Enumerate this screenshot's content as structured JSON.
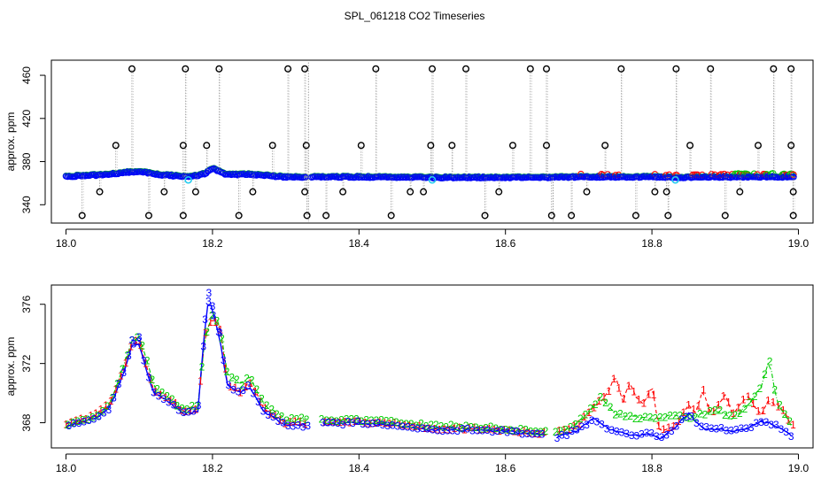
{
  "title": "SPL_061218  CO2 Timeseries",
  "chart_data": [
    {
      "type": "scatter",
      "panel": "top",
      "title": "SPL_061218  CO2 Timeseries",
      "xlabel": "",
      "ylabel": "approx. ppm",
      "xlim": [
        17.98,
        19.02
      ],
      "ylim": [
        323,
        474
      ],
      "xticks": [
        18.0,
        18.2,
        18.4,
        18.6,
        18.8,
        19.0
      ],
      "xtick_labels": [
        "18.0",
        "18.2",
        "18.4",
        "18.6",
        "18.8",
        "19.0"
      ],
      "yticks": [
        340,
        380,
        420,
        460
      ],
      "ytick_labels": [
        "340",
        "380",
        "420",
        "460"
      ],
      "baseline": [
        [
          18.0,
          366.5
        ],
        [
          18.05,
          368
        ],
        [
          18.08,
          370
        ],
        [
          18.1,
          371
        ],
        [
          18.13,
          368
        ],
        [
          18.17,
          366
        ],
        [
          18.19,
          369
        ],
        [
          18.2,
          374
        ],
        [
          18.22,
          368
        ],
        [
          18.25,
          368.5
        ],
        [
          18.3,
          366
        ],
        [
          18.4,
          366
        ],
        [
          18.5,
          365.5
        ],
        [
          18.6,
          365.5
        ],
        [
          18.65,
          365.5
        ],
        [
          18.7,
          366
        ],
        [
          18.8,
          366
        ],
        [
          18.83,
          365.5
        ],
        [
          18.9,
          366
        ],
        [
          18.99,
          366
        ]
      ],
      "high_spikes_x": [
        18.09,
        18.163,
        18.209,
        18.303,
        18.326,
        18.423,
        18.5,
        18.546,
        18.634,
        18.656,
        18.758,
        18.833,
        18.88,
        18.966,
        18.99
      ],
      "high_spike_value": 466,
      "low_spikes_x": [
        18.022,
        18.113,
        18.16,
        18.236,
        18.329,
        18.355,
        18.444,
        18.572,
        18.663,
        18.69,
        18.778,
        18.822,
        18.9,
        18.993
      ],
      "low_spike_value": 330,
      "mid_high_outliers": [
        [
          18.068,
          395
        ],
        [
          18.16,
          395
        ],
        [
          18.192,
          395
        ],
        [
          18.282,
          395
        ],
        [
          18.328,
          395
        ],
        [
          18.403,
          395
        ],
        [
          18.498,
          395
        ],
        [
          18.527,
          395
        ],
        [
          18.61,
          395
        ],
        [
          18.656,
          395
        ],
        [
          18.736,
          395
        ],
        [
          18.852,
          395
        ],
        [
          18.945,
          395
        ],
        [
          18.99,
          395
        ]
      ],
      "mid_low_outliers": [
        [
          18.046,
          352
        ],
        [
          18.134,
          352
        ],
        [
          18.177,
          352
        ],
        [
          18.255,
          352
        ],
        [
          18.326,
          352
        ],
        [
          18.378,
          352
        ],
        [
          18.47,
          352
        ],
        [
          18.488,
          352
        ],
        [
          18.591,
          352
        ],
        [
          18.711,
          352
        ],
        [
          18.804,
          352
        ],
        [
          18.82,
          352
        ],
        [
          18.92,
          352
        ],
        [
          18.993,
          352
        ]
      ],
      "cyan_points": [
        [
          18.167,
          363
        ],
        [
          18.5,
          363
        ],
        [
          18.832,
          363
        ]
      ],
      "series": [
        {
          "name": "1",
          "color": "#ff0000"
        },
        {
          "name": "2",
          "color": "#00cc00"
        },
        {
          "name": "3",
          "color": "#0000ff"
        }
      ]
    },
    {
      "type": "line",
      "panel": "bottom",
      "xlabel": "",
      "ylabel": "approx. ppm",
      "xlim": [
        17.98,
        19.02
      ],
      "ylim": [
        366.3,
        377.3
      ],
      "xticks": [
        18.0,
        18.2,
        18.4,
        18.6,
        18.8,
        19.0
      ],
      "xtick_labels": [
        "18.0",
        "18.2",
        "18.4",
        "18.6",
        "18.8",
        "19.0"
      ],
      "yticks": [
        368,
        372,
        376
      ],
      "ytick_labels": [
        "368",
        "372",
        "376"
      ],
      "series": [
        {
          "name": "1",
          "label": "1",
          "color": "#ff0000",
          "points": [
            [
              18.0,
              367.9
            ],
            [
              18.02,
              368.2
            ],
            [
              18.04,
              368.5
            ],
            [
              18.06,
              369.3
            ],
            [
              18.08,
              371.8
            ],
            [
              18.09,
              373.4
            ],
            [
              18.1,
              373.5
            ],
            [
              18.11,
              371.8
            ],
            [
              18.12,
              370.1
            ],
            [
              18.14,
              369.6
            ],
            [
              18.16,
              368.8
            ],
            [
              18.18,
              368.9
            ],
            [
              18.19,
              374.0
            ],
            [
              18.2,
              375.0
            ],
            [
              18.21,
              374.6
            ],
            [
              18.22,
              370.6
            ],
            [
              18.24,
              370.0
            ],
            [
              18.25,
              370.9
            ],
            [
              18.27,
              369.0
            ],
            [
              18.3,
              368.0
            ],
            [
              18.33,
              368.0
            ],
            [
              18.35,
              368.0
            ],
            [
              18.4,
              368.1
            ],
            [
              18.45,
              367.9
            ],
            [
              18.5,
              367.6
            ],
            [
              18.55,
              367.6
            ],
            [
              18.6,
              367.5
            ],
            [
              18.65,
              367.3
            ],
            [
              18.67,
              367.3
            ],
            [
              18.7,
              367.9
            ],
            [
              18.72,
              369.0
            ],
            [
              18.74,
              370.0
            ],
            [
              18.75,
              371.3
            ],
            [
              18.76,
              369.3
            ],
            [
              18.77,
              370.8
            ],
            [
              18.78,
              369.5
            ],
            [
              18.79,
              369.3
            ],
            [
              18.8,
              370.5
            ],
            [
              18.81,
              367.5
            ],
            [
              18.83,
              367.7
            ],
            [
              18.85,
              369.2
            ],
            [
              18.86,
              368.6
            ],
            [
              18.87,
              370.3
            ],
            [
              18.88,
              368.5
            ],
            [
              18.9,
              369.9
            ],
            [
              18.91,
              368.6
            ],
            [
              18.93,
              369.8
            ],
            [
              18.95,
              368.5
            ],
            [
              18.96,
              369.6
            ],
            [
              18.98,
              368.8
            ],
            [
              18.99,
              367.9
            ]
          ]
        },
        {
          "name": "2",
          "label": "2",
          "color": "#00cc00",
          "points": [
            [
              18.0,
              367.8
            ],
            [
              18.02,
              368.1
            ],
            [
              18.04,
              368.4
            ],
            [
              18.06,
              369.2
            ],
            [
              18.08,
              372.0
            ],
            [
              18.09,
              373.5
            ],
            [
              18.1,
              373.9
            ],
            [
              18.11,
              372.3
            ],
            [
              18.12,
              370.5
            ],
            [
              18.14,
              369.7
            ],
            [
              18.16,
              368.9
            ],
            [
              18.18,
              369.2
            ],
            [
              18.19,
              373.8
            ],
            [
              18.2,
              375.4
            ],
            [
              18.21,
              374.7
            ],
            [
              18.22,
              371.3
            ],
            [
              18.24,
              370.6
            ],
            [
              18.25,
              371.2
            ],
            [
              18.27,
              369.3
            ],
            [
              18.3,
              368.2
            ],
            [
              18.33,
              368.3
            ],
            [
              18.35,
              368.2
            ],
            [
              18.4,
              368.2
            ],
            [
              18.45,
              368.0
            ],
            [
              18.5,
              367.8
            ],
            [
              18.55,
              367.7
            ],
            [
              18.6,
              367.6
            ],
            [
              18.65,
              367.4
            ],
            [
              18.67,
              367.4
            ],
            [
              18.69,
              367.7
            ],
            [
              18.71,
              368.5
            ],
            [
              18.73,
              369.7
            ],
            [
              18.75,
              368.6
            ],
            [
              18.77,
              368.4
            ],
            [
              18.79,
              368.3
            ],
            [
              18.81,
              368.3
            ],
            [
              18.83,
              368.5
            ],
            [
              18.85,
              368.3
            ],
            [
              18.87,
              368.6
            ],
            [
              18.89,
              368.8
            ],
            [
              18.91,
              368.3
            ],
            [
              18.93,
              369.1
            ],
            [
              18.95,
              370.5
            ],
            [
              18.96,
              372.3
            ],
            [
              18.97,
              369.5
            ],
            [
              18.99,
              367.9
            ]
          ]
        },
        {
          "name": "3",
          "label": "3",
          "color": "#0000ff",
          "points": [
            [
              18.0,
              367.7
            ],
            [
              18.02,
              368.0
            ],
            [
              18.04,
              368.3
            ],
            [
              18.06,
              369.0
            ],
            [
              18.08,
              371.5
            ],
            [
              18.09,
              373.2
            ],
            [
              18.1,
              373.4
            ],
            [
              18.11,
              371.4
            ],
            [
              18.12,
              370.0
            ],
            [
              18.14,
              369.4
            ],
            [
              18.16,
              368.6
            ],
            [
              18.18,
              368.8
            ],
            [
              18.19,
              374.6
            ],
            [
              18.195,
              376.4
            ],
            [
              18.2,
              375.5
            ],
            [
              18.21,
              373.7
            ],
            [
              18.22,
              370.5
            ],
            [
              18.24,
              370.0
            ],
            [
              18.25,
              370.5
            ],
            [
              18.27,
              368.8
            ],
            [
              18.3,
              367.8
            ],
            [
              18.33,
              367.8
            ],
            [
              18.35,
              367.9
            ],
            [
              18.4,
              368.0
            ],
            [
              18.45,
              367.8
            ],
            [
              18.5,
              367.5
            ],
            [
              18.55,
              367.5
            ],
            [
              18.6,
              367.4
            ],
            [
              18.65,
              367.2
            ],
            [
              18.67,
              367.0
            ],
            [
              18.7,
              367.5
            ],
            [
              18.72,
              368.3
            ],
            [
              18.74,
              367.6
            ],
            [
              18.76,
              367.3
            ],
            [
              18.78,
              367.1
            ],
            [
              18.8,
              367.3
            ],
            [
              18.81,
              366.9
            ],
            [
              18.83,
              367.6
            ],
            [
              18.85,
              368.6
            ],
            [
              18.87,
              367.6
            ],
            [
              18.89,
              367.6
            ],
            [
              18.91,
              367.4
            ],
            [
              18.93,
              367.6
            ],
            [
              18.95,
              368.1
            ],
            [
              18.97,
              367.8
            ],
            [
              18.99,
              367.1
            ]
          ]
        }
      ]
    }
  ]
}
